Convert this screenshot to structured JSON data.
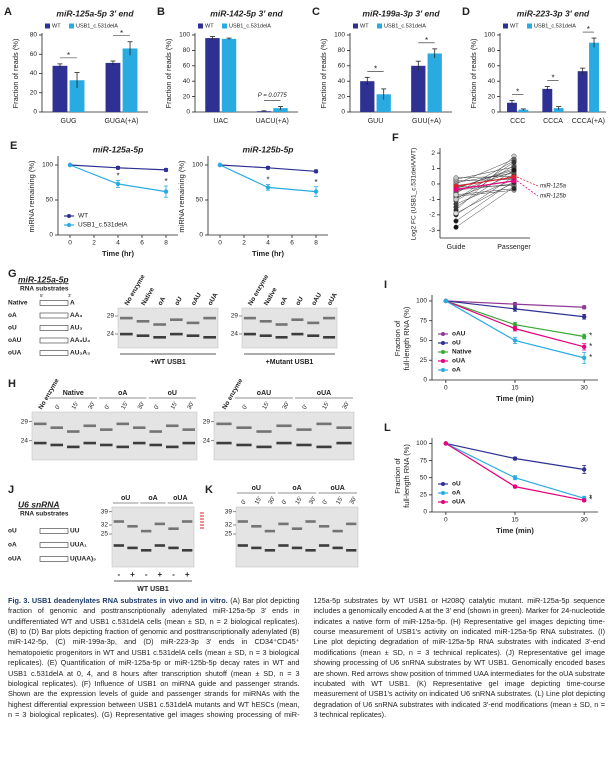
{
  "charts": [
    {
      "label": "A",
      "type": "bar",
      "title": "miR-125a-5p 3′ end",
      "ylabel": "Fraction of reads (%)",
      "categories": [
        "GUG",
        "GUGA(+A)"
      ],
      "series": [
        {
          "name": "WT",
          "color": "#2e3192",
          "values": [
            48,
            51
          ],
          "errors": [
            2,
            2
          ]
        },
        {
          "name": "USB1_c.531delA",
          "color": "#29abe2",
          "values": [
            33,
            66
          ],
          "errors": [
            8,
            7
          ]
        }
      ],
      "ylim": [
        0,
        80
      ],
      "yticks": [
        0,
        20,
        40,
        60,
        80
      ],
      "annotations": [
        "*",
        "*"
      ]
    },
    {
      "label": "B",
      "type": "bar",
      "title": "miR-142-5p 3′ end",
      "ylabel": "Fraction of reads (%)",
      "categories": [
        "UAC",
        "UACU(+A)"
      ],
      "series": [
        {
          "name": "WT",
          "color": "#2e3192",
          "values": [
            96,
            1
          ],
          "errors": [
            2,
            0.5
          ]
        },
        {
          "name": "USB1_c.531delA",
          "color": "#29abe2",
          "values": [
            95,
            5
          ],
          "errors": [
            1,
            2
          ]
        }
      ],
      "ylim": [
        0,
        100
      ],
      "yticks": [
        0,
        20,
        40,
        60,
        80,
        100
      ],
      "annotations": [
        null,
        "P = 0.0775"
      ]
    },
    {
      "label": "C",
      "type": "bar",
      "title": "miR-199a-3p 3′ end",
      "ylabel": "Fraction of reads (%)",
      "categories": [
        "GUU",
        "GUU(+A)"
      ],
      "series": [
        {
          "name": "WT",
          "color": "#2e3192",
          "values": [
            40,
            60
          ],
          "errors": [
            5,
            6
          ]
        },
        {
          "name": "USB1_c.531delA",
          "color": "#29abe2",
          "values": [
            23,
            76
          ],
          "errors": [
            7,
            6
          ]
        }
      ],
      "ylim": [
        0,
        100
      ],
      "yticks": [
        0,
        20,
        40,
        60,
        80,
        100
      ],
      "annotations": [
        "*",
        "*"
      ]
    },
    {
      "label": "D",
      "type": "bar",
      "title": "miR-223-3p 3′ end",
      "ylabel": "Fraction of reads (%)",
      "categories": [
        "CCC",
        "CCCA",
        "CCCA(+A)"
      ],
      "series": [
        {
          "name": "WT",
          "color": "#2e3192",
          "values": [
            12,
            30,
            53
          ],
          "errors": [
            3,
            3,
            4
          ]
        },
        {
          "name": "USB1_c.531delA",
          "color": "#29abe2",
          "values": [
            3,
            5,
            90
          ],
          "errors": [
            1,
            2,
            6
          ]
        }
      ],
      "ylim": [
        0,
        100
      ],
      "yticks": [
        0,
        20,
        40,
        60,
        80,
        100
      ],
      "annotations": [
        "*",
        "*",
        "*"
      ]
    },
    {
      "label": "E",
      "type": "line",
      "title": "miR-125a-5p",
      "xlabel": "Time (hr)",
      "ylabel": "miRNA remaining (%)",
      "x": [
        0,
        4,
        8
      ],
      "xlim": [
        -1,
        9
      ],
      "xticks": [
        0,
        2,
        4,
        6,
        8
      ],
      "ylim": [
        0,
        110
      ],
      "yticks": [
        0,
        50,
        100
      ],
      "legend": "lower left",
      "series": [
        {
          "name": "WT",
          "color": "#2e3192",
          "values": [
            100,
            96,
            93
          ],
          "errors": [
            0,
            2,
            2
          ]
        },
        {
          "name": "USB1_c.531delA",
          "color": "#29abe2",
          "values": [
            100,
            73,
            62
          ],
          "errors": [
            0,
            5,
            8
          ],
          "annotations": [
            null,
            "*",
            "*"
          ]
        }
      ]
    },
    {
      "type": "line",
      "title": "miR-125b-5p",
      "xlabel": "Time (hr)",
      "ylabel": "miRNA remaining (%)",
      "x": [
        0,
        4,
        8
      ],
      "xlim": [
        -1,
        9
      ],
      "xticks": [
        0,
        2,
        4,
        6,
        8
      ],
      "ylim": [
        0,
        110
      ],
      "yticks": [
        0,
        50,
        100
      ],
      "series": [
        {
          "name": "WT",
          "color": "#2e3192",
          "values": [
            100,
            96,
            91
          ],
          "errors": [
            0,
            2,
            2
          ]
        },
        {
          "name": "USB1_c.531delA",
          "color": "#29abe2",
          "values": [
            100,
            68,
            62
          ],
          "errors": [
            0,
            4,
            7
          ],
          "annotations": [
            null,
            "*",
            "*"
          ]
        }
      ]
    },
    {
      "label": "F",
      "type": "paired",
      "ylabel": "Log2 FC (USB1_c.531delA/WT)",
      "categories": [
        "Guide",
        "Passenger"
      ],
      "ylim": [
        -3.5,
        2.2
      ],
      "yticks": [
        -3,
        -2,
        -1,
        0,
        1,
        2
      ],
      "others": {
        "guide": [
          -2.8,
          -2.4,
          -2.0,
          -1.7,
          -1.5,
          -1.3,
          -1.1,
          -0.9,
          -0.8,
          -0.6,
          -0.5,
          -0.4,
          -0.3,
          -0.2,
          -0.1,
          0.0,
          0.1,
          0.2,
          0.3,
          0.4,
          -1.0,
          -0.7,
          -1.9,
          -0.25
        ],
        "passenger": [
          -0.2,
          0.2,
          0.5,
          1.8,
          0.9,
          0.3,
          1.2,
          0.6,
          -0.4,
          1.5,
          0.8,
          0.0,
          1.0,
          -0.1,
          0.4,
          1.6,
          0.7,
          0.3,
          1.1,
          0.5,
          1.4,
          -0.3,
          0.1,
          0.9
        ]
      },
      "series": [
        {
          "name": "miR-125a",
          "color": "#e0202a",
          "values": [
            -0.15,
            0.45
          ]
        },
        {
          "name": "miR-125b",
          "color": "#e6007e",
          "values": [
            -0.35,
            0.2
          ]
        }
      ]
    },
    {
      "label": "I",
      "type": "line",
      "xlabel": "Time (min)",
      "ylabel": [
        "Fraction of",
        "full-length RNA (%)"
      ],
      "x": [
        0,
        15,
        30
      ],
      "xlim": [
        -3,
        33
      ],
      "xticks": [
        0,
        15,
        30
      ],
      "ylim": [
        0,
        105
      ],
      "yticks": [
        0,
        25,
        50,
        75,
        100
      ],
      "legend": "lower left",
      "series": [
        {
          "name": "oAU",
          "color": "#8e3a96",
          "values": [
            100,
            96,
            92
          ],
          "errors": [
            0,
            2,
            2
          ]
        },
        {
          "name": "oU",
          "color": "#2e3192",
          "values": [
            100,
            90,
            80
          ],
          "errors": [
            0,
            3,
            3
          ]
        },
        {
          "name": "Native",
          "color": "#3aaa35",
          "values": [
            100,
            70,
            55
          ],
          "errors": [
            0,
            3,
            3
          ],
          "annotations": [
            null,
            null,
            "*"
          ]
        },
        {
          "name": "oUA",
          "color": "#e6007e",
          "values": [
            100,
            65,
            42
          ],
          "errors": [
            0,
            3,
            4
          ],
          "annotations": [
            null,
            null,
            "*"
          ]
        },
        {
          "name": "oA",
          "color": "#29abe2",
          "values": [
            100,
            50,
            28
          ],
          "errors": [
            0,
            4,
            7
          ],
          "annotations": [
            null,
            null,
            "*"
          ]
        }
      ]
    },
    {
      "label": "L",
      "type": "line",
      "xlabel": "Time (min)",
      "ylabel": [
        "Fraction of",
        "full-length RNA (%)"
      ],
      "x": [
        0,
        15,
        30
      ],
      "xlim": [
        -3,
        33
      ],
      "xticks": [
        0,
        15,
        30
      ],
      "ylim": [
        0,
        105
      ],
      "yticks": [
        0,
        25,
        50,
        75,
        100
      ],
      "legend": "lower left",
      "series": [
        {
          "name": "oU",
          "color": "#2e3192",
          "values": [
            100,
            78,
            62
          ],
          "errors": [
            0,
            2,
            6
          ]
        },
        {
          "name": "oA",
          "color": "#29abe2",
          "values": [
            100,
            50,
            20
          ],
          "errors": [
            0,
            3,
            3
          ],
          "annotations": [
            null,
            null,
            "*"
          ]
        },
        {
          "name": "oUA",
          "color": "#e6007e",
          "values": [
            100,
            37,
            17
          ],
          "errors": [
            0,
            2,
            2
          ],
          "annotations": [
            null,
            null,
            "*"
          ]
        }
      ]
    }
  ],
  "palette": {
    "No enzyme": "#222222",
    "Native": "#3aaa35",
    "oA": "#29abe2",
    "oU": "#2e3192",
    "oAU": "#8e3a96",
    "oUA": "#e6007e"
  },
  "gel_G": {
    "label": "G",
    "heading": "miR-125a-5p",
    "heading_color": "#3aaa35",
    "subheading": "RNA substrates",
    "ends": [
      "5′",
      "3′"
    ],
    "substrates": [
      {
        "name": "Native",
        "seq": "A"
      },
      {
        "name": "oA",
        "seq": "AA₃"
      },
      {
        "name": "oU",
        "seq": "AU₃"
      },
      {
        "name": "oAU",
        "seq": "AA₃U₃"
      },
      {
        "name": "oUA",
        "seq": "AU₃A₃"
      }
    ],
    "gels": [
      {
        "lanes": [
          "No enzyme",
          "Native",
          "oA",
          "oU",
          "oAU",
          "oUA"
        ],
        "markers": [
          "29",
          "24"
        ],
        "footer": "+WT USB1"
      },
      {
        "lanes": [
          "No enzyme",
          "Native",
          "oA",
          "oU",
          "oAU",
          "oUA"
        ],
        "markers": [
          "29",
          "24"
        ],
        "footer": "+Mutant USB1"
      }
    ]
  },
  "gel_H": {
    "label": "H",
    "gels": [
      {
        "groups": [
          {
            "name": "No enzyme",
            "times": []
          },
          {
            "name": "Native",
            "times": [
              "0′",
              "15′",
              "30′"
            ]
          },
          {
            "name": "oA",
            "times": [
              "0′",
              "15′",
              "30′"
            ]
          },
          {
            "name": "oU",
            "times": [
              "0′",
              "15′",
              "30′"
            ]
          }
        ],
        "markers": [
          "29",
          "24"
        ]
      },
      {
        "groups": [
          {
            "name": "No enzyme",
            "times": []
          },
          {
            "name": "oAU",
            "times": [
              "0′",
              "15′",
              "30′"
            ]
          },
          {
            "name": "oUA",
            "times": [
              "0′",
              "15′",
              "30′"
            ]
          }
        ],
        "markers": [
          "29",
          "24"
        ]
      }
    ]
  },
  "gel_J": {
    "label": "J",
    "heading": "U6 snRNA",
    "heading_color": "#3aaa35",
    "subheading": "RNA substrates",
    "substrates": [
      {
        "name": "oU",
        "seq": "UU"
      },
      {
        "name": "oA",
        "seq": "UUA₁"
      },
      {
        "name": "oUA",
        "seq": "U(UAA)₅"
      }
    ],
    "gels": [
      {
        "groups": [
          {
            "name": "oU",
            "times": [
              "-",
              "+"
            ]
          },
          {
            "name": "oA",
            "times": [
              "-",
              "+"
            ]
          },
          {
            "name": "oUA",
            "times": [
              "-",
              "+"
            ]
          }
        ],
        "markers": [
          "39",
          "32",
          "25"
        ],
        "footer": "WT USB1"
      }
    ]
  },
  "gel_K": {
    "label": "K",
    "gels": [
      {
        "groups": [
          {
            "name": "oU",
            "times": [
              "0′",
              "15′",
              "30′"
            ]
          },
          {
            "name": "oA",
            "times": [
              "0′",
              "15′",
              "30′"
            ]
          },
          {
            "name": "oUA",
            "times": [
              "0′",
              "15′",
              "30′"
            ]
          }
        ],
        "markers": [
          "39",
          "32",
          "25"
        ]
      }
    ]
  },
  "caption": {
    "title": "Fig. 3. USB1 deadenylates RNA substrates in vivo and in vitro.",
    "text": "(A) Bar plot depicting fraction of genomic and posttranscriptionally adenylated miR-125a-5p 3′ ends in undifferentiated WT and USB1 c.531delA cells (mean ± SD, n = 2 biological replicates). (B) to (D) Bar plots depicting fraction of genomic and posttranscriptionally adenylated (B) miR-142-5p, (C) miR-199a-3p, and (D) miR-223-3p 3′ ends in CD34⁺CD45⁺ hematopoietic progenitors in WT and USB1 c.531delA cells (mean ± SD, n = 3 biological replicates). (E) Quantification of miR-125a-5p or miR-125b-5p decay rates in WT and USB1 c.531delA at 0, 4, and 8 hours after transcription shutoff (mean ± SD, n = 3 biological replicates). (F) Influence of USB1 on miRNA guide and passenger strands. Shown are the expression levels of guide and passenger strands for miRNAs with the highest differential expression between USB1 c.531delA mutants and WT hESCs (mean, n = 3 biological replicates). (G) Representative gel images showing processing of miR-125a-5p substrates by WT USB1 or H208Q catalytic mutant. miR-125a-5p sequence includes a genomically encoded A at the 3′ end (shown in green). Marker for 24-nucleotide indicates a native form of miR-125a-5p. (H) Representative gel images depicting time-course measurement of USB1's activity on indicated miR-125a-5p RNA substrates. (I) Line plot depicting degradation of miR-125a-5p RNA substrates with indicated 3′-end modifications (mean ± SD, n = 3 technical replicates). (J) Representative gel image showing processing of U6 snRNA substrates by WT USB1. Genomically encoded bases are shown. Red arrows show position of trimmed UAA intermediates for the oUA substrate incubated with WT USB1. (K) Representative gel image depicting time-course measurement of USB1's activity on indicated U6 snRNA substrates. (L) Line plot depicting degradation of U6 snRNA substrates with indicated 3′-end modifications (mean ± SD, n = 3 technical replicates)."
  }
}
